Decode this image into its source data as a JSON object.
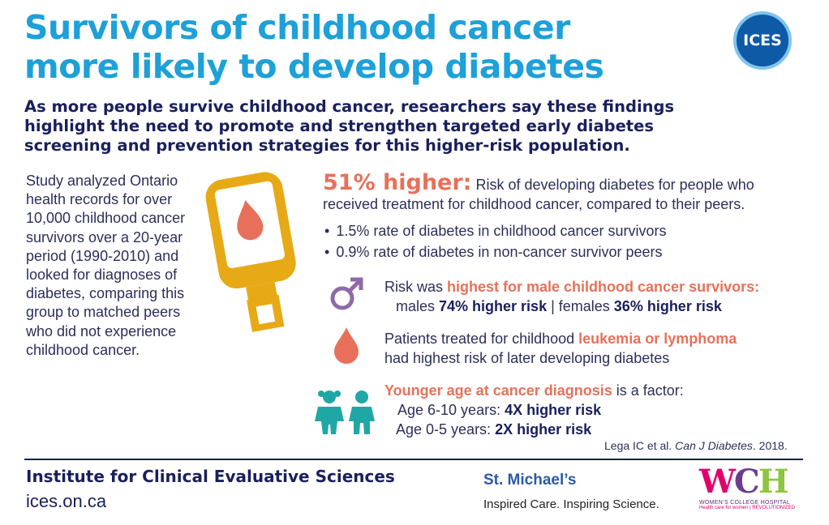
{
  "title": {
    "line1": "Survivors of childhood cancer",
    "line2": "more likely to develop diabetes"
  },
  "ices_logo": "ICES",
  "subtitle": "As more people survive childhood cancer, researchers say these findings highlight the need to promote and strengthen targeted early diabetes screening and prevention strategies for this higher-risk population.",
  "study": "Study analyzed Ontario health records for over 10,000 childhood cancer survivors over a 20-year period (1990-2010) and looked for diagnoses of diabetes, comparing this group to matched peers who did not experience childhood cancer.",
  "main_stat": {
    "highlight": "51% higher:",
    "text": "Risk of developing diabetes for people who received treatment for childhood cancer, compared to their peers.",
    "bullets": [
      "1.5% rate of diabetes in childhood cancer survivors",
      "0.9% rate of diabetes in non-cancer survivor peers"
    ]
  },
  "male_fact": {
    "prefix": "Risk was ",
    "highlight": "highest for male childhood cancer survivors:",
    "males_prefix": "males ",
    "males_value": "74% higher risk",
    "separator": " | females ",
    "females_value": "36% higher risk"
  },
  "leukemia_fact": {
    "prefix": "Patients treated for childhood ",
    "highlight": "leukemia or lymphoma",
    "suffix": "had highest risk of later developing diabetes"
  },
  "age_fact": {
    "highlight": "Younger age at cancer diagnosis",
    "suffix": " is a factor:",
    "age1_prefix": "Age 6-10 years: ",
    "age1_value": "4X higher risk",
    "age2_prefix": "Age 0-5 years: ",
    "age2_value": "2X higher risk"
  },
  "citation": {
    "authors": "Lega IC  et al. ",
    "journal": "Can J Diabetes",
    "year": ". 2018."
  },
  "footer": {
    "institute": "Institute for Clinical Evaluative Sciences",
    "url": "ices.on.ca",
    "stmichaels_name": "St. Michael’s",
    "stmichaels_tagline": "Inspired Care. Inspiring Science.",
    "wch_letters": "WCH",
    "wch_name": "WOMEN’S COLLEGE HOSPITAL",
    "wch_tagline": "Health care for women | REVOLUTIONIZED"
  },
  "icons": [
    "glucose-meter-icon",
    "male-symbol-icon",
    "blood-drop-icon",
    "children-icon"
  ],
  "colors": {
    "title_blue": "#1ea0d8",
    "navy": "#1a1f5c",
    "coral": "#e8705a",
    "meter_gold": "#e8a917",
    "male_purple": "#8e6aa8",
    "children_teal": "#1fa7a6"
  }
}
